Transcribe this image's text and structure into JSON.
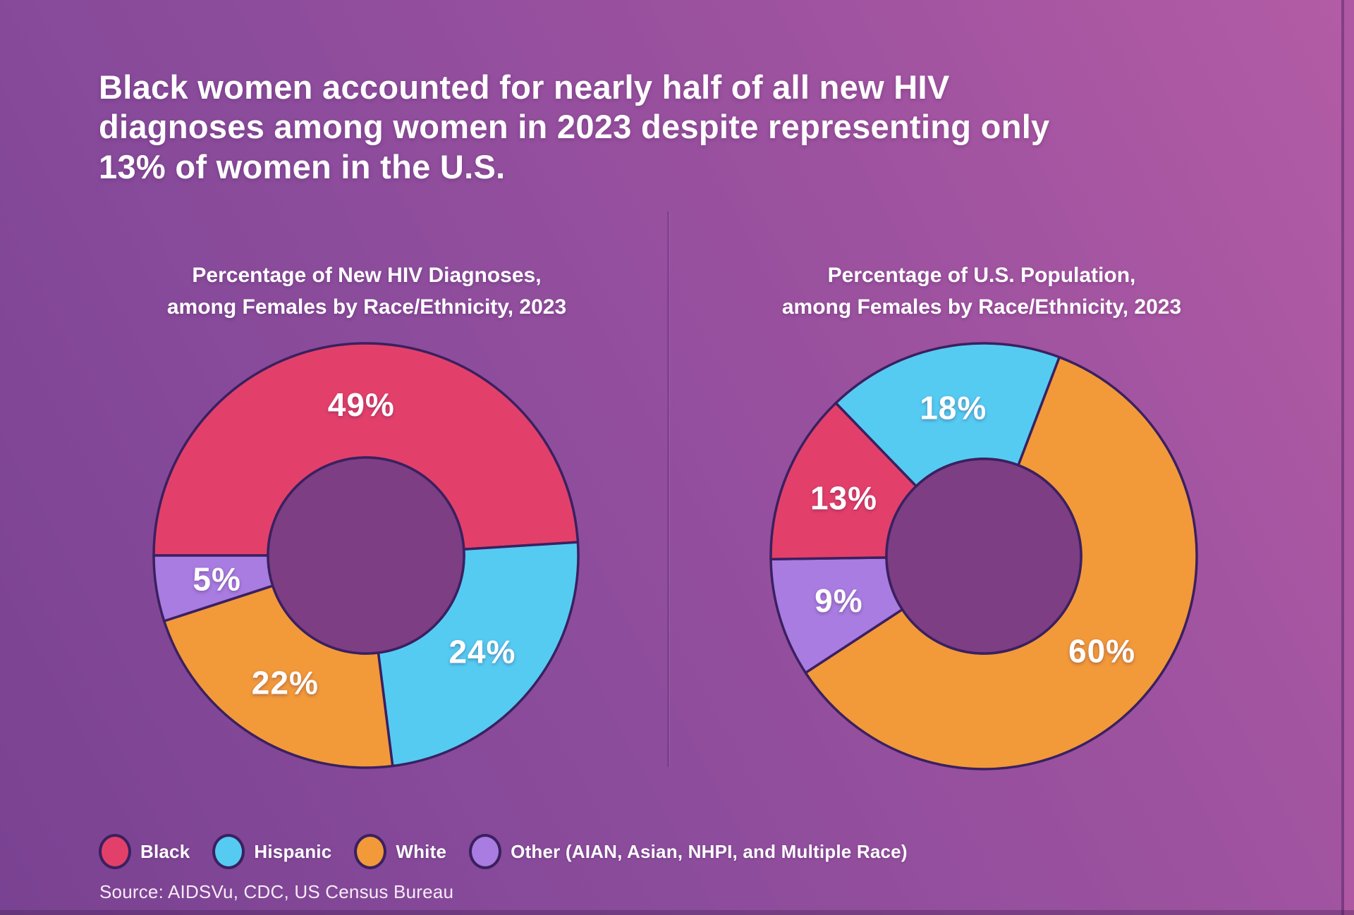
{
  "headline": {
    "line1": "Black women accounted for nearly half of all new HIV",
    "line2": "diagnoses among women in 2023 despite representing only",
    "line3": "13% of women in the U.S."
  },
  "colors": {
    "Black": "#e2406a",
    "Hispanic": "#55cbf2",
    "White": "#f2993a",
    "Other": "#a87ce0",
    "donut_center": "#7d3e84",
    "slice_stroke": "#3b2060",
    "label_text": "#ffffff"
  },
  "chart_data": [
    {
      "type": "pie",
      "subtype": "donut",
      "title": "Percentage of New HIV Diagnoses, among Females by Race/Ethnicity, 2023",
      "title_lines": [
        "Percentage of New HIV Diagnoses,",
        "among Females by Race/Ethnicity, 2023"
      ],
      "categories": [
        "Black",
        "Hispanic",
        "White",
        "Other"
      ],
      "values": [
        49,
        24,
        22,
        5
      ],
      "data_labels": [
        "49%",
        "24%",
        "22%",
        "5%"
      ],
      "legend_position": "bottom",
      "rotation_deg_clockwise_from_top": 270
    },
    {
      "type": "pie",
      "subtype": "donut",
      "title": "Percentage of U.S. Population, among Females by Race/Ethnicity, 2023",
      "title_lines": [
        "Percentage of U.S. Population,",
        "among Females by Race/Ethnicity, 2023"
      ],
      "categories": [
        "Hispanic",
        "White",
        "Other",
        "Black"
      ],
      "values": [
        18,
        60,
        9,
        13
      ],
      "data_labels": [
        "18%",
        "60%",
        "9%",
        "13%"
      ],
      "legend_position": "bottom",
      "rotation_deg_clockwise_from_top": 316
    }
  ],
  "legend": {
    "items": [
      {
        "label": "Black",
        "color_key": "Black"
      },
      {
        "label": "Hispanic",
        "color_key": "Hispanic"
      },
      {
        "label": "White",
        "color_key": "White"
      },
      {
        "label": "Other (AIAN, Asian, NHPI, and Multiple Race)",
        "color_key": "Other"
      }
    ]
  },
  "source_text": "Source: AIDSVu, CDC, US Census Bureau"
}
